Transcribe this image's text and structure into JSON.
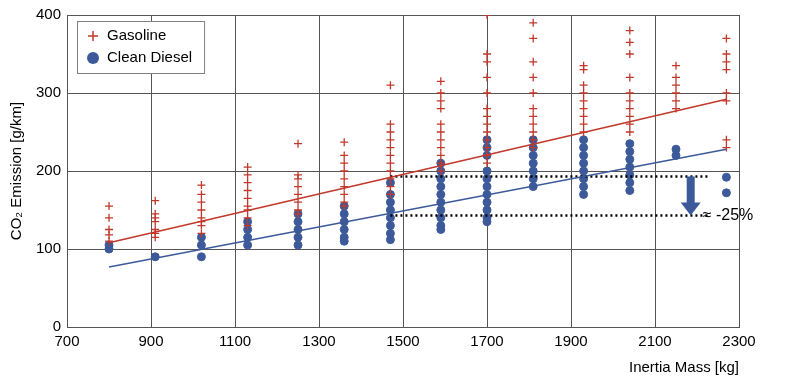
{
  "chart_data": {
    "type": "scatter",
    "x_label": "Inertia Mass [kg]",
    "y_label": "CO₂ Emission [g/km]",
    "xlim": [
      700,
      2300
    ],
    "xticks": [
      700,
      900,
      1100,
      1300,
      1500,
      1700,
      1900,
      2100,
      2300
    ],
    "ylim": [
      0,
      400
    ],
    "yticks": [
      0,
      100,
      200,
      300,
      400
    ],
    "grid": true,
    "legend": "top-left",
    "series": [
      {
        "name": "Gasoline",
        "color": "#c0392b",
        "marker": "plus",
        "x": [
          800,
          800,
          800,
          800,
          800,
          910,
          910,
          910,
          910,
          910,
          910,
          910,
          1020,
          1020,
          1020,
          1020,
          1020,
          1020,
          1020,
          1020,
          1130,
          1130,
          1130,
          1130,
          1130,
          1130,
          1130,
          1130,
          1130,
          1250,
          1250,
          1250,
          1250,
          1250,
          1250,
          1250,
          1250,
          1360,
          1360,
          1360,
          1360,
          1360,
          1360,
          1360,
          1360,
          1360,
          1470,
          1470,
          1470,
          1470,
          1470,
          1470,
          1470,
          1470,
          1470,
          1470,
          1470,
          1590,
          1590,
          1590,
          1590,
          1590,
          1590,
          1590,
          1590,
          1590,
          1590,
          1590,
          1700,
          1700,
          1700,
          1700,
          1700,
          1700,
          1700,
          1700,
          1700,
          1700,
          1700,
          1700,
          1700,
          1810,
          1810,
          1810,
          1810,
          1810,
          1810,
          1810,
          1810,
          1810,
          1810,
          1810,
          1930,
          1930,
          1930,
          1930,
          1930,
          1930,
          1930,
          1930,
          1930,
          2040,
          2040,
          2040,
          2040,
          2040,
          2040,
          2040,
          2040,
          2040,
          2040,
          2150,
          2150,
          2150,
          2150,
          2150,
          2150,
          2270,
          2270,
          2270,
          2270,
          2270,
          2270,
          2270,
          2270
        ],
        "values": [
          155,
          140,
          125,
          118,
          110,
          162,
          145,
          140,
          135,
          125,
          120,
          115,
          182,
          170,
          160,
          150,
          140,
          135,
          130,
          120,
          205,
          195,
          185,
          175,
          165,
          155,
          150,
          140,
          130,
          235,
          195,
          190,
          180,
          170,
          160,
          150,
          145,
          237,
          220,
          210,
          200,
          190,
          180,
          170,
          160,
          155,
          310,
          260,
          250,
          240,
          230,
          220,
          210,
          200,
          190,
          180,
          170,
          315,
          300,
          290,
          280,
          260,
          250,
          240,
          230,
          220,
          210,
          200,
          400,
          350,
          340,
          320,
          300,
          280,
          270,
          260,
          250,
          240,
          230,
          220,
          210,
          390,
          370,
          340,
          320,
          300,
          280,
          270,
          260,
          250,
          240,
          230,
          335,
          330,
          310,
          300,
          290,
          280,
          270,
          260,
          250,
          380,
          365,
          350,
          320,
          300,
          290,
          280,
          270,
          260,
          250,
          335,
          320,
          310,
          300,
          290,
          280,
          370,
          350,
          340,
          330,
          300,
          290,
          240,
          230
        ]
      },
      {
        "name": "Clean Diesel",
        "color": "#3c5a9a",
        "marker": "circle",
        "x": [
          800,
          800,
          910,
          1020,
          1020,
          1020,
          1130,
          1130,
          1130,
          1130,
          1250,
          1250,
          1250,
          1250,
          1250,
          1360,
          1360,
          1360,
          1360,
          1360,
          1360,
          1470,
          1470,
          1470,
          1470,
          1470,
          1470,
          1470,
          1470,
          1590,
          1590,
          1590,
          1590,
          1590,
          1590,
          1590,
          1590,
          1590,
          1590,
          1700,
          1700,
          1700,
          1700,
          1700,
          1700,
          1700,
          1700,
          1700,
          1700,
          1700,
          1810,
          1810,
          1810,
          1810,
          1810,
          1810,
          1810,
          1930,
          1930,
          1930,
          1930,
          1930,
          1930,
          1930,
          1930,
          2040,
          2040,
          2040,
          2040,
          2040,
          2040,
          2040,
          2150,
          2150,
          2270,
          2270
        ],
        "values": [
          105,
          100,
          90,
          115,
          105,
          90,
          135,
          125,
          115,
          105,
          145,
          135,
          125,
          115,
          105,
          155,
          145,
          135,
          125,
          115,
          110,
          185,
          170,
          160,
          150,
          140,
          130,
          120,
          112,
          210,
          200,
          190,
          180,
          170,
          160,
          150,
          140,
          130,
          125,
          240,
          230,
          220,
          200,
          190,
          180,
          170,
          160,
          150,
          140,
          135,
          240,
          230,
          220,
          210,
          200,
          190,
          180,
          240,
          230,
          220,
          210,
          200,
          190,
          180,
          170,
          235,
          225,
          215,
          205,
          195,
          185,
          175,
          228,
          220,
          192,
          172
        ]
      },
      {
        "type": "line",
        "color": "#c0392b",
        "line_style": "solid",
        "x": [
          800,
          2270
        ],
        "values": [
          108,
          292
        ]
      },
      {
        "type": "line",
        "color": "#3c5a9a",
        "line_style": "solid",
        "x": [
          800,
          2270
        ],
        "values": [
          77,
          228
        ]
      },
      {
        "type": "line",
        "color": "#000000",
        "line_style": "dotted",
        "x": [
          1470,
          2230
        ],
        "values": [
          193,
          193
        ]
      },
      {
        "type": "line",
        "color": "#000000",
        "line_style": "dotted",
        "x": [
          1470,
          2230
        ],
        "values": [
          143,
          143
        ]
      }
    ],
    "annotations": [
      {
        "text": "≈ -25%",
        "x": 2185,
        "y": 143,
        "color": "#3c5a9a"
      }
    ]
  }
}
